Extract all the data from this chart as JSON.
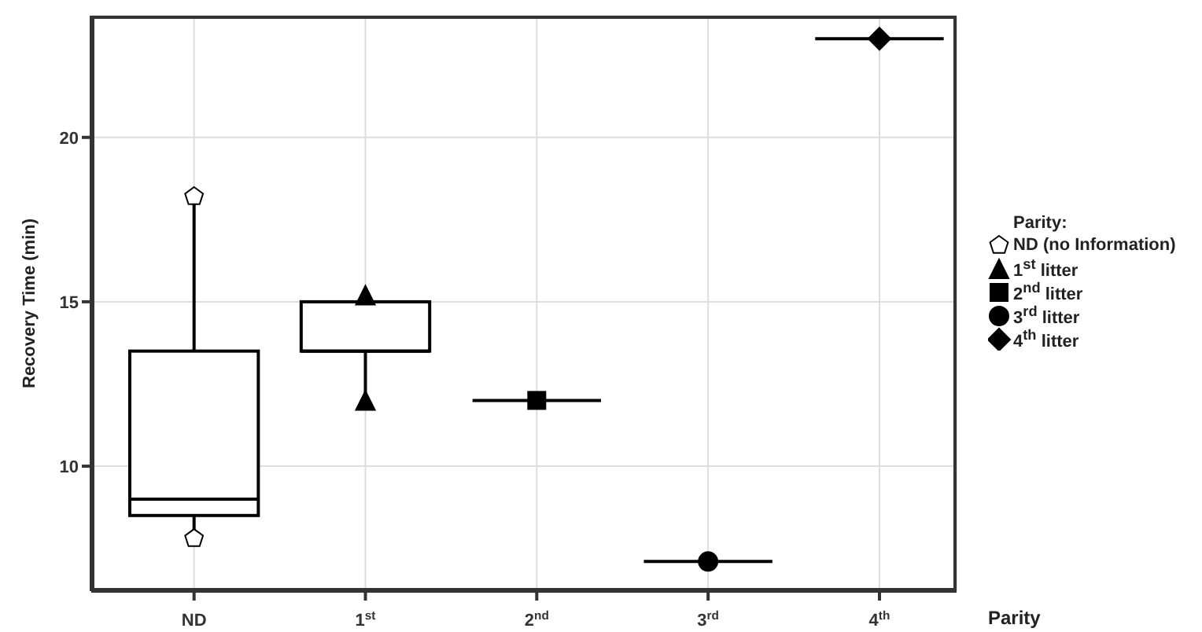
{
  "chart_data": {
    "type": "box",
    "xlabel": "Parity",
    "ylabel": "Recovery Time (min)",
    "legend_title": "Parity:",
    "categories": [
      "ND",
      "1$^{st}$",
      "2$^{nd}$",
      "3$^{rd}$",
      "4$^{th}$"
    ],
    "boxes": [
      {
        "low": 7.8,
        "q1": 8.5,
        "median": 9,
        "q3": 13.5,
        "high": 18.2
      },
      {
        "low": 12,
        "q1": 13.5,
        "median": 13.5,
        "q3": 15,
        "high": 15
      },
      {
        "low": 12,
        "q1": 12,
        "median": 12,
        "q3": 12,
        "high": 12
      },
      {
        "low": 7.1,
        "q1": 7.1,
        "median": 7.1,
        "q3": 7.1,
        "high": 7.1
      },
      {
        "low": 23,
        "q1": 23,
        "median": 23,
        "q3": 23,
        "high": 23
      }
    ],
    "series": [
      {
        "type": "scatter",
        "name": "ND (no Information)",
        "color": "#ffffff",
        "x": [
          "ND",
          "ND"
        ],
        "values": [
          18.2,
          7.8
        ]
      },
      {
        "type": "scatter",
        "name": "1$^{st}$ litter",
        "marker": "triangle",
        "color": "#000000",
        "x": [
          "1$^{st}$",
          "1$^{st}$"
        ],
        "values": [
          15.2,
          12
        ]
      },
      {
        "type": "scatter",
        "name": "2$^{nd}$ litter",
        "marker": "square",
        "color": "#000000",
        "x": [
          "2$^{nd}$"
        ],
        "values": [
          12
        ]
      },
      {
        "type": "scatter",
        "name": "3$^{rd}$ litter",
        "marker": "circle",
        "color": "#000000",
        "x": [
          "3$^{rd}$"
        ],
        "values": [
          7.1
        ]
      },
      {
        "type": "scatter",
        "name": "4$^{th}$ litter",
        "marker": "diamond",
        "color": "#000000",
        "x": [
          "4$^{th}$"
        ],
        "values": [
          23
        ]
      }
    ],
    "color": "#000000",
    "ylim": [
      6.2,
      23.7
    ],
    "yticks": [
      10,
      15,
      20
    ],
    "grid": true,
    "legend": "right"
  }
}
